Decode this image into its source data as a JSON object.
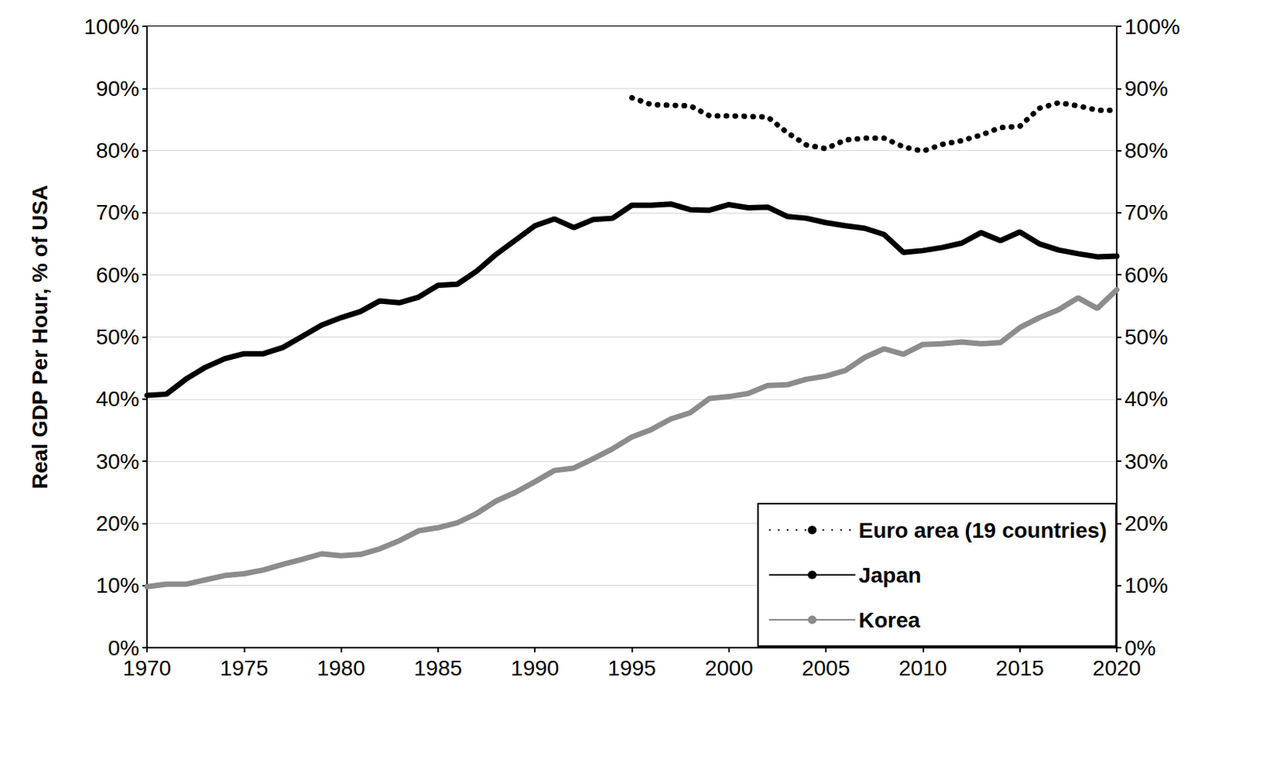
{
  "chart_data": {
    "type": "line",
    "y_label": "Real GDP Per Hour, % of USA",
    "x": [
      1970,
      1971,
      1972,
      1973,
      1974,
      1975,
      1976,
      1977,
      1978,
      1979,
      1980,
      1981,
      1982,
      1983,
      1984,
      1985,
      1986,
      1987,
      1988,
      1989,
      1990,
      1991,
      1992,
      1993,
      1994,
      1995,
      1996,
      1997,
      1998,
      1999,
      2000,
      2001,
      2002,
      2003,
      2004,
      2005,
      2006,
      2007,
      2008,
      2009,
      2010,
      2011,
      2012,
      2013,
      2014,
      2015,
      2016,
      2017,
      2018,
      2019,
      2020
    ],
    "series": [
      {
        "name": "Euro area (19 countries)",
        "color": "#000000",
        "line_style": "dotted",
        "values": [
          null,
          null,
          null,
          null,
          null,
          null,
          null,
          null,
          null,
          null,
          null,
          null,
          null,
          null,
          null,
          null,
          null,
          null,
          null,
          null,
          null,
          null,
          null,
          null,
          null,
          88.5,
          87.4,
          87.3,
          87.2,
          85.6,
          85.6,
          85.5,
          85.4,
          82.9,
          80.9,
          80.3,
          81.7,
          82.0,
          82.0,
          80.6,
          79.9,
          81.0,
          81.6,
          82.5,
          83.7,
          83.9,
          86.8,
          87.7,
          87.2,
          86.5,
          86.5
        ]
      },
      {
        "name": "Japan",
        "color": "#000000",
        "line_style": "solid",
        "values": [
          40.6,
          40.8,
          43.2,
          45.1,
          46.5,
          47.3,
          47.3,
          48.3,
          50.1,
          51.9,
          53.1,
          54.1,
          55.8,
          55.5,
          56.4,
          58.3,
          58.5,
          60.6,
          63.3,
          65.6,
          67.9,
          69.0,
          67.6,
          68.9,
          69.1,
          71.2,
          71.2,
          71.4,
          70.5,
          70.4,
          71.3,
          70.8,
          70.9,
          69.4,
          69.1,
          68.4,
          67.9,
          67.5,
          66.5,
          63.6,
          63.9,
          64.4,
          65.1,
          66.8,
          65.5,
          66.9,
          65.0,
          64.0,
          63.4,
          62.9,
          63.0
        ]
      },
      {
        "name": "Korea",
        "color": "#8c8c8c",
        "line_style": "solid",
        "values": [
          9.8,
          10.2,
          10.2,
          10.9,
          11.6,
          11.9,
          12.5,
          13.4,
          14.2,
          15.1,
          14.8,
          15.0,
          15.9,
          17.2,
          18.8,
          19.3,
          20.1,
          21.6,
          23.6,
          25.0,
          26.7,
          28.5,
          28.9,
          30.4,
          32.0,
          33.9,
          35.1,
          36.8,
          37.8,
          40.1,
          40.4,
          40.9,
          42.2,
          42.3,
          43.2,
          43.7,
          44.6,
          46.7,
          48.1,
          47.2,
          48.8,
          48.9,
          49.2,
          48.9,
          49.1,
          51.5,
          53.1,
          54.4,
          56.3,
          54.6,
          57.6
        ]
      }
    ],
    "xlim": [
      1970,
      2020
    ],
    "xticks": [
      1970,
      1975,
      1980,
      1985,
      1990,
      1995,
      2000,
      2005,
      2010,
      2015,
      2020
    ],
    "ylim": [
      0,
      100
    ],
    "yticks": [
      {
        "value": 0,
        "label": "0%"
      },
      {
        "value": 10,
        "label": "10%"
      },
      {
        "value": 20,
        "label": "20%"
      },
      {
        "value": 30,
        "label": "30%"
      },
      {
        "value": 40,
        "label": "40%"
      },
      {
        "value": 50,
        "label": "50%"
      },
      {
        "value": 60,
        "label": "60%"
      },
      {
        "value": 70,
        "label": "70%"
      },
      {
        "value": 80,
        "label": "80%"
      },
      {
        "value": 90,
        "label": "90%"
      },
      {
        "value": 100,
        "label": "100%"
      }
    ],
    "y2lim": [
      0,
      100
    ],
    "y2ticks": [
      {
        "value": 0,
        "label": "0%"
      },
      {
        "value": 10,
        "label": "10%"
      },
      {
        "value": 20,
        "label": "20%"
      },
      {
        "value": 30,
        "label": "30%"
      },
      {
        "value": 40,
        "label": "40%"
      },
      {
        "value": 50,
        "label": "50%"
      },
      {
        "value": 60,
        "label": "60%"
      },
      {
        "value": 70,
        "label": "70%"
      },
      {
        "value": 80,
        "label": "80%"
      },
      {
        "value": 90,
        "label": "90%"
      },
      {
        "value": 100,
        "label": "100%"
      }
    ],
    "grid": true,
    "legend": "lower right"
  }
}
